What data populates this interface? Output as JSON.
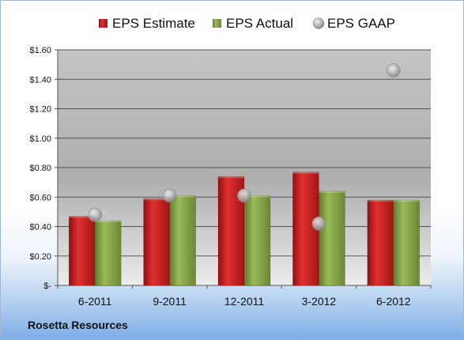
{
  "company": "Rosetta Resources",
  "chart_data": {
    "type": "bar",
    "categories": [
      "6-2011",
      "9-2011",
      "12-2011",
      "3-2012",
      "6-2012"
    ],
    "series": [
      {
        "name": "EPS Estimate",
        "kind": "bar",
        "color": "#cc1f1f",
        "values": [
          0.47,
          0.59,
          0.74,
          0.77,
          0.58
        ]
      },
      {
        "name": "EPS Actual",
        "kind": "bar",
        "color": "#8aa64a",
        "values": [
          0.44,
          0.61,
          0.61,
          0.64,
          0.58
        ]
      },
      {
        "name": "EPS GAAP",
        "kind": "marker",
        "color": "#b9b9b9",
        "values": [
          0.48,
          0.61,
          0.61,
          0.42,
          1.46
        ]
      }
    ],
    "y_ticks": [
      {
        "value": 0,
        "label": "$-"
      },
      {
        "value": 0.2,
        "label": "$0.20"
      },
      {
        "value": 0.4,
        "label": "$0.40"
      },
      {
        "value": 0.6,
        "label": "$0.60"
      },
      {
        "value": 0.8,
        "label": "$0.80"
      },
      {
        "value": 1.0,
        "label": "$1.00"
      },
      {
        "value": 1.2,
        "label": "$1.20"
      },
      {
        "value": 1.4,
        "label": "$1.40"
      },
      {
        "value": 1.6,
        "label": "$1.60"
      }
    ],
    "ylim": [
      0,
      1.6
    ],
    "grid": true,
    "legend_position": "top"
  }
}
